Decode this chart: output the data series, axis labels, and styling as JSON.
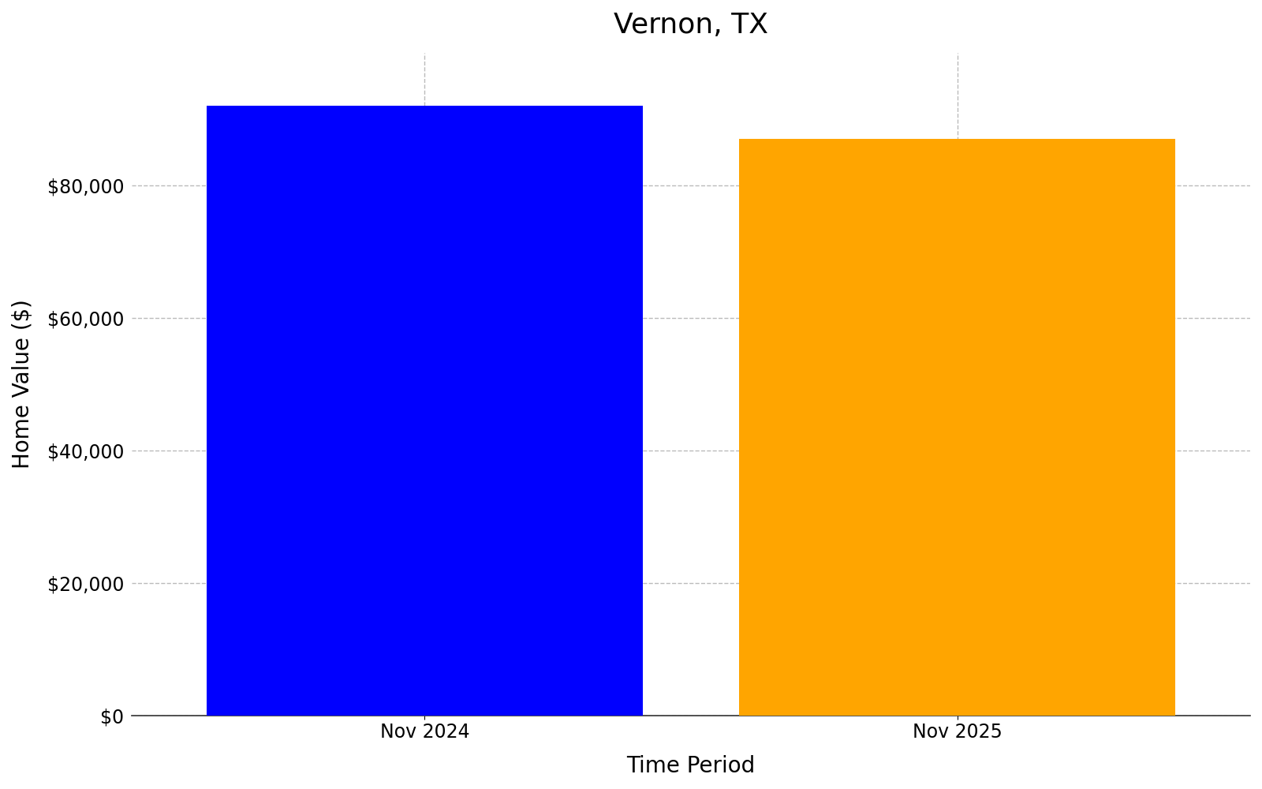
{
  "title": "Vernon, TX",
  "categories": [
    "Nov 2024",
    "Nov 2025"
  ],
  "values": [
    92000,
    87000
  ],
  "bar_colors": [
    "#0000FF",
    "#FFA500"
  ],
  "xlabel": "Time Period",
  "ylabel": "Home Value ($)",
  "ylim": [
    0,
    100000
  ],
  "yticks": [
    0,
    20000,
    40000,
    60000,
    80000
  ],
  "background_color": "#ffffff",
  "title_fontsize": 26,
  "axis_label_fontsize": 20,
  "tick_fontsize": 17,
  "bar_width": 0.82,
  "grid_color": "#aaaaaa",
  "grid_alpha": 0.8,
  "grid_linestyle": "--"
}
